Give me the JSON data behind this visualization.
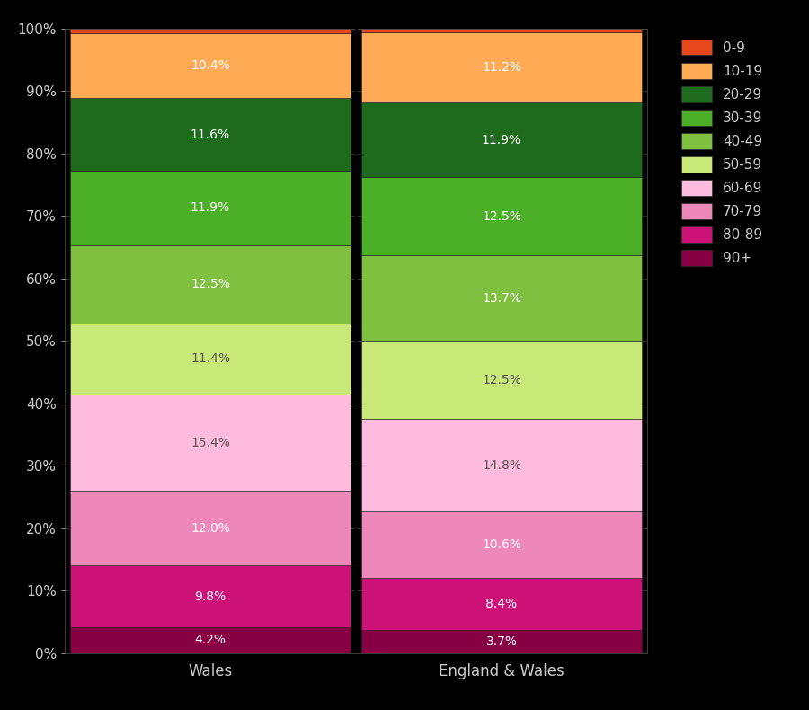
{
  "categories": [
    "Wales",
    "England & Wales"
  ],
  "colors": {
    "0-9": "#E8471C",
    "10-19": "#FFAA55",
    "20-29": "#1E6B1E",
    "30-39": "#4BAF28",
    "40-49": "#80C040",
    "50-59": "#C8E878",
    "60-69": "#FFBBDD",
    "70-79": "#EE88BB",
    "80-89": "#CC1177",
    "90+": "#880044"
  },
  "wales": {
    "90+": 4.2,
    "80-89": 9.8,
    "70-79": 12.0,
    "60-69": 15.4,
    "50-59": 11.4,
    "40-49": 12.5,
    "30-39": 11.9,
    "20-29": 11.6,
    "10-19": 10.4,
    "0-9": 0.8
  },
  "england_wales": {
    "90+": 3.7,
    "80-89": 8.4,
    "70-79": 10.6,
    "60-69": 14.8,
    "50-59": 12.5,
    "40-49": 13.7,
    "30-39": 12.5,
    "20-29": 11.9,
    "10-19": 11.2,
    "0-9": 0.7
  },
  "background_color": "#000000",
  "text_color": "#CCCCCC",
  "figsize": [
    9.0,
    7.9
  ]
}
